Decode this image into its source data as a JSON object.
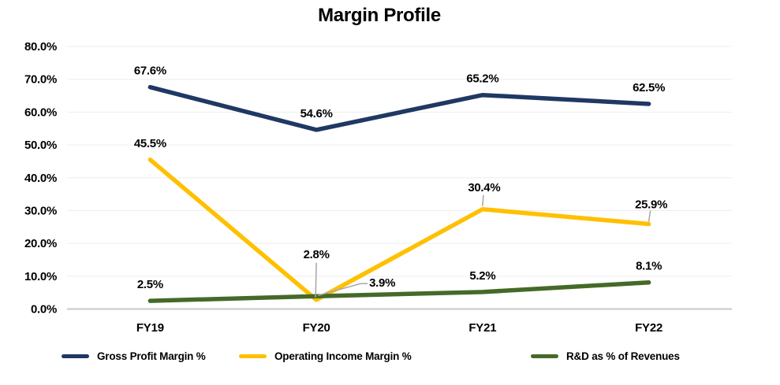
{
  "title": "Margin Profile",
  "chart_data": {
    "type": "line",
    "title": "Margin Profile",
    "categories": [
      "FY19",
      "FY20",
      "FY21",
      "FY22"
    ],
    "series": [
      {
        "name": "Gross Profit Margin %",
        "color": "#1F3864",
        "values": [
          67.6,
          54.6,
          65.2,
          62.5
        ]
      },
      {
        "name": "Operating Income Margin %",
        "color": "#FFC000",
        "values": [
          45.5,
          2.8,
          30.4,
          25.9
        ]
      },
      {
        "name": "R&D as % of Revenues",
        "color": "#456A28",
        "values": [
          2.5,
          3.9,
          5.2,
          8.1
        ]
      }
    ],
    "data_labels": [
      "67.6%",
      "54.6%",
      "65.2%",
      "62.5%",
      "45.5%",
      "2.8%",
      "30.4%",
      "25.9%",
      "2.5%",
      "3.9%",
      "5.2%",
      "8.1%"
    ],
    "y_ticks": [
      "80.0%",
      "70.0%",
      "60.0%",
      "50.0%",
      "40.0%",
      "30.0%",
      "20.0%",
      "10.0%",
      "0.0%"
    ],
    "ylim": [
      0,
      80
    ],
    "xlabel": "",
    "ylabel": "",
    "grid": true,
    "legend_position": "bottom",
    "leader_line_color": "#A6A6A6",
    "gridline_color": "#EDEDED",
    "axis_line_color": "#C8C8C8"
  }
}
